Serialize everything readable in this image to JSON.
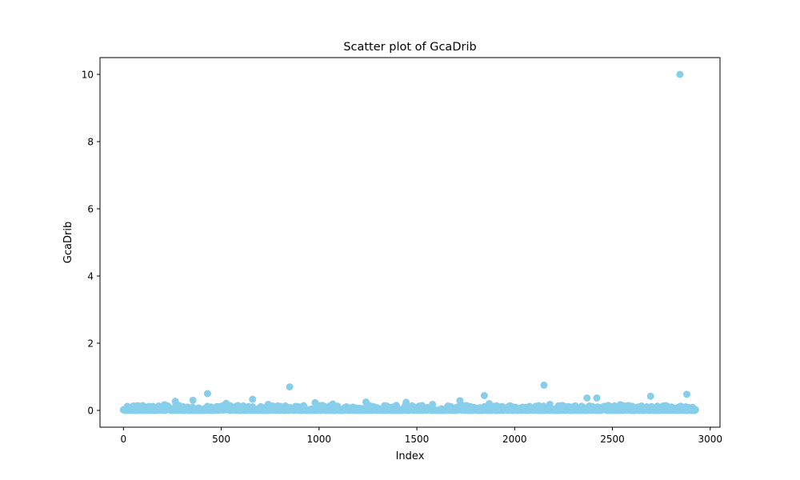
{
  "chart_data": {
    "type": "scatter",
    "title": "Scatter plot of GcaDrib",
    "xlabel": "Index",
    "ylabel": "GcaDrib",
    "xlim": [
      -120,
      3050
    ],
    "ylim": [
      -0.5,
      10.5
    ],
    "x_ticks": [
      0,
      500,
      1000,
      1500,
      2000,
      2500,
      3000
    ],
    "y_ticks": [
      0,
      2,
      4,
      6,
      8,
      10
    ],
    "x_tick_labels": [
      "0",
      "500",
      "1000",
      "1500",
      "2000",
      "2500",
      "3000"
    ],
    "y_tick_labels": [
      "0",
      "2",
      "4",
      "6",
      "8",
      "10"
    ],
    "grid": false,
    "marker_color": "#87CEEB",
    "n_points": 2925,
    "band_max_approx": 0.15,
    "notable_points": [
      {
        "x": 0,
        "y": 0.02
      },
      {
        "x": 20,
        "y": 0.12
      },
      {
        "x": 50,
        "y": 0.13
      },
      {
        "x": 150,
        "y": 0.12
      },
      {
        "x": 210,
        "y": 0.17
      },
      {
        "x": 265,
        "y": 0.27
      },
      {
        "x": 355,
        "y": 0.3
      },
      {
        "x": 430,
        "y": 0.5
      },
      {
        "x": 525,
        "y": 0.21
      },
      {
        "x": 660,
        "y": 0.33
      },
      {
        "x": 740,
        "y": 0.18
      },
      {
        "x": 850,
        "y": 0.7
      },
      {
        "x": 980,
        "y": 0.23
      },
      {
        "x": 1070,
        "y": 0.19
      },
      {
        "x": 1240,
        "y": 0.25
      },
      {
        "x": 1445,
        "y": 0.24
      },
      {
        "x": 1580,
        "y": 0.18
      },
      {
        "x": 1720,
        "y": 0.29
      },
      {
        "x": 1845,
        "y": 0.44
      },
      {
        "x": 1870,
        "y": 0.2
      },
      {
        "x": 2150,
        "y": 0.75
      },
      {
        "x": 2180,
        "y": 0.18
      },
      {
        "x": 2370,
        "y": 0.37
      },
      {
        "x": 2420,
        "y": 0.37
      },
      {
        "x": 2540,
        "y": 0.17
      },
      {
        "x": 2695,
        "y": 0.42
      },
      {
        "x": 2845,
        "y": 10.0
      },
      {
        "x": 2880,
        "y": 0.48
      },
      {
        "x": 2925,
        "y": 0.02
      }
    ]
  }
}
